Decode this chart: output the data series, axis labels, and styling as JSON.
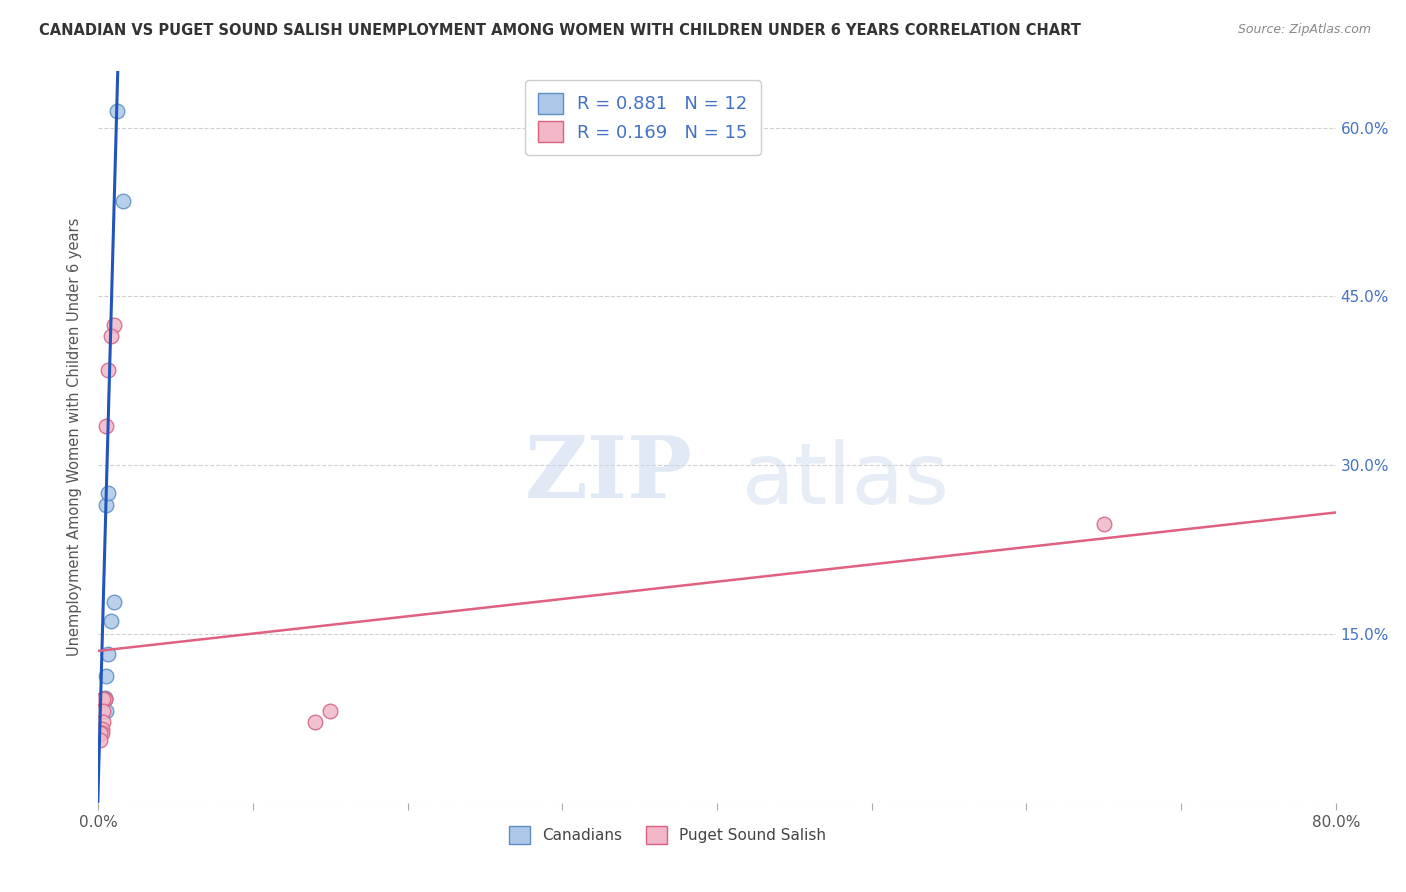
{
  "title": "CANADIAN VS PUGET SOUND SALISH UNEMPLOYMENT AMONG WOMEN WITH CHILDREN UNDER 6 YEARS CORRELATION CHART",
  "source": "Source: ZipAtlas.com",
  "ylabel": "Unemployment Among Women with Children Under 6 years",
  "xlim": [
    0,
    0.8
  ],
  "ylim": [
    0,
    0.65
  ],
  "xticks": [
    0.0,
    0.1,
    0.2,
    0.3,
    0.4,
    0.5,
    0.6,
    0.7,
    0.8
  ],
  "ytick_values": [
    0.0,
    0.15,
    0.3,
    0.45,
    0.6
  ],
  "ytick_labels_right": [
    "",
    "15.0%",
    "30.0%",
    "45.0%",
    "60.0%"
  ],
  "background_color": "#ffffff",
  "grid_color": "#d0d0d0",
  "canadians_color": "#adc8e8",
  "canadians_edge_color": "#5b8ec4",
  "puget_color": "#f2b8c8",
  "puget_edge_color": "#d96080",
  "blue_line_color": "#2255bb",
  "pink_line_color": "#e06080",
  "canadians_x": [
    0.012,
    0.016,
    0.005,
    0.006,
    0.01,
    0.008,
    0.006,
    0.005,
    0.004,
    0.003,
    0.004,
    0.005
  ],
  "canadians_y": [
    0.615,
    0.535,
    0.265,
    0.275,
    0.178,
    0.162,
    0.132,
    0.113,
    0.093,
    0.092,
    0.092,
    0.082
  ],
  "puget_x": [
    0.01,
    0.008,
    0.006,
    0.005,
    0.004,
    0.003,
    0.003,
    0.003,
    0.002,
    0.002,
    0.001,
    0.001,
    0.15,
    0.14,
    0.65
  ],
  "puget_y": [
    0.425,
    0.415,
    0.385,
    0.335,
    0.092,
    0.092,
    0.082,
    0.072,
    0.066,
    0.062,
    0.062,
    0.056,
    0.082,
    0.072,
    0.248
  ],
  "canadians_R": 0.881,
  "canadians_N": 12,
  "puget_R": 0.169,
  "puget_N": 15,
  "blue_line_x": [
    -0.001,
    0.0125
  ],
  "blue_line_y": [
    -0.03,
    0.65
  ],
  "pink_line_x": [
    0.0,
    0.8
  ],
  "pink_line_y": [
    0.135,
    0.258
  ],
  "watermark_zip": "ZIP",
  "watermark_atlas": "atlas",
  "marker_size": 110,
  "title_fontsize": 10.5,
  "legend_fontsize": 13,
  "ylabel_fontsize": 10.5
}
